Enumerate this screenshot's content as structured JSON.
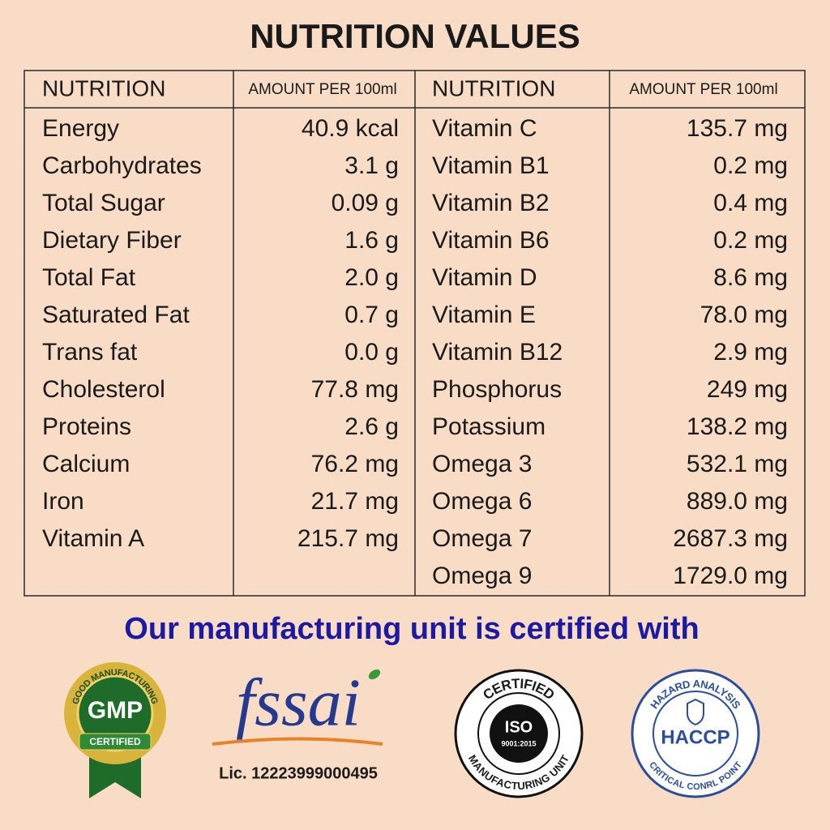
{
  "title": "NUTRITION VALUES",
  "table": {
    "header": [
      "NUTRITION",
      "AMOUNT PER 100ml",
      "NUTRITION",
      "AMOUNT PER 100ml"
    ],
    "left_rows": [
      [
        "Energy",
        "40.9 kcal"
      ],
      [
        "Carbohydrates",
        "3.1 g"
      ],
      [
        "Total Sugar",
        "0.09 g"
      ],
      [
        "Dietary Fiber",
        "1.6 g"
      ],
      [
        "Total Fat",
        "2.0 g"
      ],
      [
        "Saturated Fat",
        "0.7 g"
      ],
      [
        "Trans fat",
        "0.0 g"
      ],
      [
        "Cholesterol",
        "77.8 mg"
      ],
      [
        "Proteins",
        "2.6 g"
      ],
      [
        "Calcium",
        "76.2 mg"
      ],
      [
        "Iron",
        "21.7 mg"
      ],
      [
        "Vitamin A",
        "215.7 mg"
      ]
    ],
    "right_rows": [
      [
        "Vitamin C",
        "135.7 mg"
      ],
      [
        "Vitamin B1",
        "0.2 mg"
      ],
      [
        "Vitamin B2",
        "0.4 mg"
      ],
      [
        "Vitamin B6",
        "0.2 mg"
      ],
      [
        "Vitamin D",
        "8.6 mg"
      ],
      [
        "Vitamin E",
        "78.0 mg"
      ],
      [
        "Vitamin B12",
        "2.9 mg"
      ],
      [
        "Phosphorus",
        "249 mg"
      ],
      [
        "Potassium",
        "138.2 mg"
      ],
      [
        "Omega 3",
        "532.1 mg"
      ],
      [
        "Omega 6",
        "889.0 mg"
      ],
      [
        "Omega 7",
        "2687.3 mg"
      ],
      [
        "Omega 9",
        "1729.0 mg"
      ]
    ]
  },
  "certification": {
    "heading": "Our manufacturing unit is certified with",
    "gmp": {
      "ring": "GOOD MANUFACTURING",
      "label": "GMP",
      "banner": "CERTIFIED"
    },
    "fssai": {
      "logo": "fssai",
      "license": "Lic. 12223999000495"
    },
    "iso": {
      "top": "CERTIFIED",
      "label": "ISO",
      "standard": "9001:2015",
      "bottom": "MANUFACTURING UNIT"
    },
    "haccp": {
      "top": "HAZARD ANALYSIS",
      "label": "HACCP",
      "bottom": "CRITICAL CONRL POINT"
    }
  }
}
